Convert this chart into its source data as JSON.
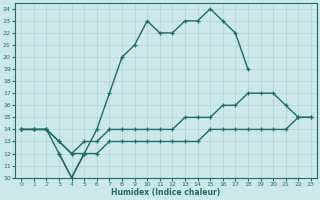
{
  "xlabel": "Humidex (Indice chaleur)",
  "xlim": [
    -0.5,
    23.5
  ],
  "ylim": [
    10,
    24.5
  ],
  "bg_color": "#cde8e8",
  "line_color": "#1a6b6b",
  "grid_color": "#b0d4d4",
  "line1_x": [
    0,
    1,
    2,
    3,
    4,
    5,
    6,
    7,
    8,
    9,
    10,
    11,
    12,
    13,
    14,
    15,
    16,
    17,
    18
  ],
  "line1_y": [
    14,
    14,
    14,
    12,
    10,
    12,
    14,
    17,
    20,
    21,
    23,
    22,
    22,
    23,
    23,
    24,
    23,
    22,
    19
  ],
  "line2_x": [
    0,
    1,
    2,
    3,
    4,
    5,
    6,
    7,
    8,
    9,
    10,
    11,
    12,
    13,
    14,
    15,
    16,
    17,
    18,
    19,
    20,
    21,
    22,
    23
  ],
  "line2_y": [
    14,
    14,
    14,
    13,
    12,
    13,
    13,
    14,
    14,
    14,
    14,
    14,
    14,
    15,
    15,
    15,
    16,
    16,
    17,
    17,
    17,
    16,
    15,
    15
  ],
  "line3_x": [
    0,
    1,
    2,
    3,
    4,
    5,
    6,
    7,
    8,
    9,
    10,
    11,
    12,
    13,
    14,
    15,
    16,
    17,
    18,
    19,
    20,
    21,
    22,
    23
  ],
  "line3_y": [
    14,
    14,
    14,
    13,
    12,
    12,
    12,
    13,
    13,
    13,
    13,
    13,
    13,
    13,
    13,
    14,
    14,
    14,
    14,
    14,
    14,
    14,
    15,
    15
  ],
  "line4_x": [
    3,
    4,
    5
  ],
  "line4_y": [
    12,
    10,
    12
  ],
  "linewidth": 1.0,
  "markersize": 3.5
}
